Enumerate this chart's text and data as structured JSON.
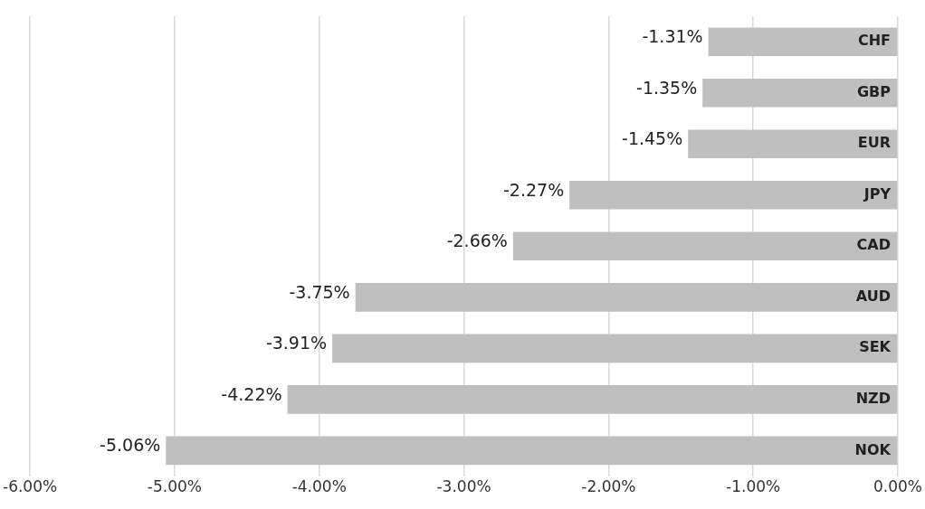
{
  "chart_data": {
    "type": "bar",
    "orientation": "horizontal",
    "categories": [
      "CHF",
      "GBP",
      "EUR",
      "JPY",
      "CAD",
      "AUD",
      "SEK",
      "NZD",
      "NOK"
    ],
    "values": [
      -1.31,
      -1.35,
      -1.45,
      -2.27,
      -2.66,
      -3.75,
      -3.91,
      -4.22,
      -5.06
    ],
    "value_labels": [
      "-1.31%",
      "-1.35%",
      "-1.45%",
      "-2.27%",
      "-2.66%",
      "-3.75%",
      "-3.91%",
      "-4.22%",
      "-5.06%"
    ],
    "color": "#bfbfbf",
    "xlim": [
      -6,
      0
    ],
    "xticks": [
      {
        "value": -6,
        "label": "-6.00%"
      },
      {
        "value": -5,
        "label": "-5.00%"
      },
      {
        "value": -4,
        "label": "-4.00%"
      },
      {
        "value": -3,
        "label": "-3.00%"
      },
      {
        "value": -2,
        "label": "-2.00%"
      },
      {
        "value": -1,
        "label": "-1.00%"
      },
      {
        "value": 0,
        "label": "0.00%"
      }
    ],
    "grid": "x",
    "legend": false
  }
}
